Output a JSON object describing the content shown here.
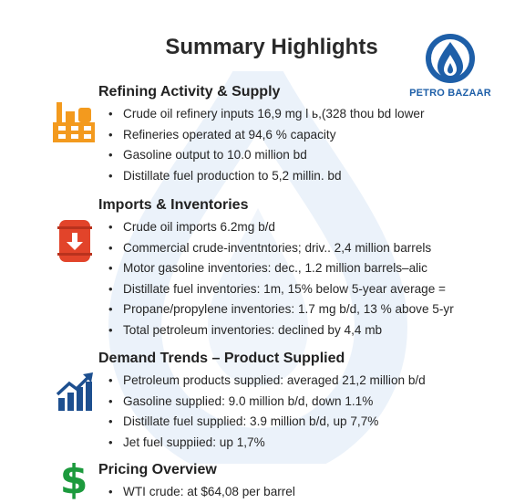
{
  "title": "Summary Highlights",
  "logo": {
    "text": "PETRO BAZAAR",
    "brand_color": "#1e5fa8"
  },
  "sections": [
    {
      "title": "Refining Activity & Supply",
      "icon": "refinery-icon",
      "icon_color": "#f39a1e",
      "items": [
        "Crude oil refinery inputs 16,9 mg l ь,(328 thou bd lower",
        "Refineries operated at 94,6 % capacity",
        "Gasoline output to 10.0 million bd",
        "Distillate fuel production to 5,2 millin. bd"
      ]
    },
    {
      "title": "Imports & Inventories",
      "icon": "oil-barrel-icon",
      "icon_color": "#e2442a",
      "items": [
        "Crude oil imports 6.2mg b/d",
        "Commercial crude-inventntories; driv.. 2,4 million barrels",
        "Motor gasoline inventories: dec., 1.2 million barrels–alic",
        "Distillate fuel inventories: 1m, 15% below 5-year average =",
        "Propane/propylene inventories: 1.7 mg b/d,  13 % above 5-yr",
        "Total petroleum inventories: declined by 4,4 mb"
      ]
    },
    {
      "title": "Demand Trends – Product Supplied",
      "icon": "bar-chart-up-icon",
      "icon_color": "#1d4f8f",
      "items": [
        "Petroleum products supplied: averaged 21,2 million b/d",
        "Gasoline supplied: 9.0 million b/d, down 1.1%",
        "Distillate fuel supplied: 3.9 million b/d, up  7,7%",
        "Jet fuel suppiied: up 1,7%"
      ]
    },
    {
      "title": "Pricing Overview",
      "icon": "dollar-sign-icon",
      "icon_color": "#1c9a3d",
      "items": [
        "WTI crude: at $64,08 per barrel"
      ]
    }
  ]
}
